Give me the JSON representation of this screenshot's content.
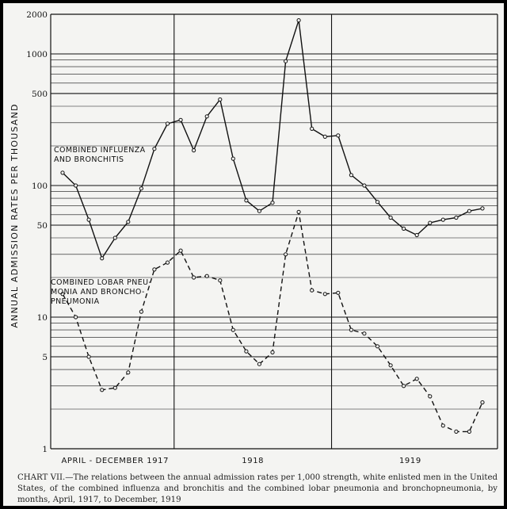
{
  "chart_data": {
    "type": "line",
    "title": "",
    "ylabel": "ANNUAL ADMISSION RATES PER THOUSAND",
    "xlabel": "",
    "y_scale": "log",
    "ylim": [
      1,
      2000
    ],
    "y_ticks": [
      1,
      5,
      10,
      50,
      100,
      500,
      1000,
      2000
    ],
    "y_tick_labels": [
      "1",
      "5",
      "10",
      "50",
      "100",
      "500",
      "1000",
      "2000"
    ],
    "x_period_labels": [
      "APRIL - DECEMBER 1917",
      "1918",
      "1919"
    ],
    "x": [
      "1917-04",
      "1917-05",
      "1917-06",
      "1917-07",
      "1917-08",
      "1917-09",
      "1917-10",
      "1917-11",
      "1917-12",
      "1918-01",
      "1918-02",
      "1918-03",
      "1918-04",
      "1918-05",
      "1918-06",
      "1918-07",
      "1918-08",
      "1918-09",
      "1918-10",
      "1918-11",
      "1918-12",
      "1919-01",
      "1919-02",
      "1919-03",
      "1919-04",
      "1919-05",
      "1919-06",
      "1919-07",
      "1919-08",
      "1919-09",
      "1919-10",
      "1919-11",
      "1919-12"
    ],
    "series": [
      {
        "name": "COMBINED INFLUENZA AND BRONCHITIS",
        "line_style": "solid",
        "values": [
          125,
          100,
          55,
          28,
          40,
          53,
          95,
          190,
          295,
          315,
          185,
          335,
          450,
          160,
          77,
          64,
          74,
          880,
          1800,
          270,
          235,
          240,
          120,
          100,
          75,
          57,
          47,
          42,
          52,
          55,
          57,
          64,
          67
        ]
      },
      {
        "name": "COMBINED LOBAR PNEUMONIA AND BRONCHOPNEUMONIA",
        "line_style": "dashed",
        "values": [
          15,
          10,
          5,
          2.8,
          2.9,
          3.8,
          11,
          23,
          26,
          32,
          20,
          20.5,
          19,
          8,
          5.5,
          4.4,
          5.4,
          30,
          63,
          16,
          15,
          15.3,
          8,
          7.5,
          6,
          4.3,
          3,
          3.4,
          2.5,
          1.5,
          1.35,
          1.35,
          2.25
        ]
      }
    ],
    "grid": true,
    "legend": "inline labels beside each curve"
  },
  "caption": {
    "text": "CHART VII.—The relations between the annual admission rates per 1,000 strength, white enlisted men in the United States, of the combined influenza and bronchitis and the combined lobar pneumonia and bronchopneumonia, by months, April, 1917, to December, 1919"
  },
  "labels": {
    "influenza_line1": "COMBINED INFLUENZA",
    "influenza_line2": "AND BRONCHITIS",
    "pneumonia_line1": "COMBINED LOBAR PNEU-",
    "pneumonia_line2": "MONIA AND BRONCHO-",
    "pneumonia_line3": "PNEUMONIA"
  },
  "colors": {
    "ink": "#111111",
    "paper": "#f4f4f2"
  }
}
